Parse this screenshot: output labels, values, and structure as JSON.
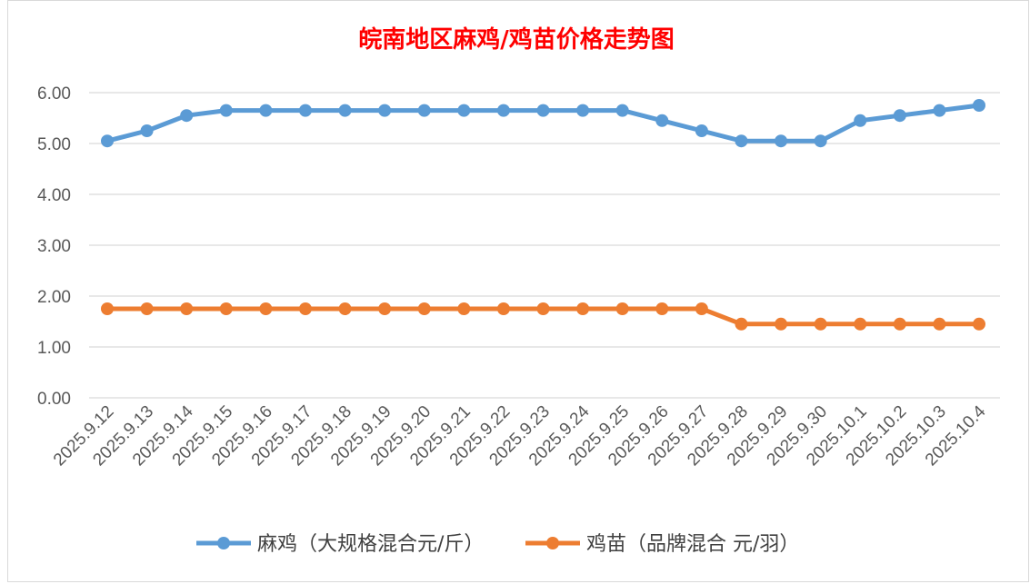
{
  "chart_data": {
    "type": "line",
    "title": "皖南地区麻鸡/鸡苗价格走势图",
    "xlabel": "",
    "ylabel": "",
    "ylim": [
      0,
      6
    ],
    "y_ticks": [
      "0.00",
      "1.00",
      "2.00",
      "3.00",
      "4.00",
      "5.00",
      "6.00"
    ],
    "grid": true,
    "legend_position": "bottom",
    "categories": [
      "2025.9.12",
      "2025.9.13",
      "2025.9.14",
      "2025.9.15",
      "2025.9.16",
      "2025.9.17",
      "2025.9.18",
      "2025.9.19",
      "2025.9.20",
      "2025.9.21",
      "2025.9.22",
      "2025.9.23",
      "2025.9.24",
      "2025.9.25",
      "2025.9.26",
      "2025.9.27",
      "2025.9.28",
      "2025.9.29",
      "2025.9.30",
      "2025.10.1",
      "2025.10.2",
      "2025.10.3",
      "2025.10.4"
    ],
    "series": [
      {
        "name": "麻鸡（大规格混合元/斤）",
        "color": "#5b9bd5",
        "values": [
          5.05,
          5.25,
          5.55,
          5.65,
          5.65,
          5.65,
          5.65,
          5.65,
          5.65,
          5.65,
          5.65,
          5.65,
          5.65,
          5.65,
          5.45,
          5.25,
          5.05,
          5.05,
          5.05,
          5.45,
          5.55,
          5.65,
          5.75
        ]
      },
      {
        "name": "鸡苗（品牌混合 元/羽）",
        "color": "#ed7d31",
        "values": [
          1.75,
          1.75,
          1.75,
          1.75,
          1.75,
          1.75,
          1.75,
          1.75,
          1.75,
          1.75,
          1.75,
          1.75,
          1.75,
          1.75,
          1.75,
          1.75,
          1.45,
          1.45,
          1.45,
          1.45,
          1.45,
          1.45,
          1.45
        ]
      }
    ],
    "title_color": "#ff0000"
  }
}
